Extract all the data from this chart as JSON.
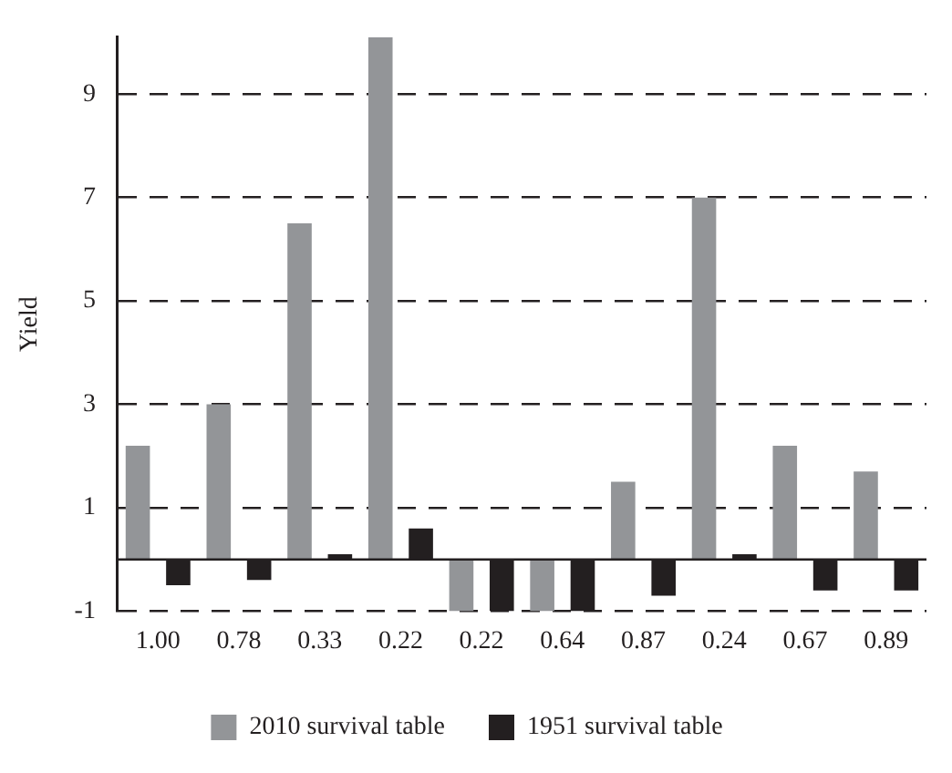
{
  "chart_data": {
    "type": "bar",
    "ylabel": "Yield",
    "categories": [
      "1.00",
      "0.78",
      "0.33",
      "0.22",
      "0.22",
      "0.64",
      "0.87",
      "0.24",
      "0.67",
      "0.89"
    ],
    "series": [
      {
        "name": "2010 survival table",
        "color": "#939598",
        "values": [
          2.2,
          3.0,
          6.5,
          10.1,
          -1.0,
          -1.0,
          1.5,
          7.0,
          2.2,
          1.7
        ]
      },
      {
        "name": "1951 survival table",
        "color": "#231f20",
        "values": [
          -0.5,
          -0.4,
          0.1,
          0.6,
          -1.0,
          -1.0,
          -0.7,
          0.1,
          -0.6,
          -0.6
        ]
      }
    ],
    "ylim": [
      -1,
      10.1
    ],
    "yticks": [
      -1,
      1,
      3,
      5,
      7,
      9
    ],
    "grid": "y",
    "legend": "bottom",
    "ref_lines": [
      {
        "axis": "y",
        "value": 0,
        "color": "#231f20"
      }
    ]
  }
}
